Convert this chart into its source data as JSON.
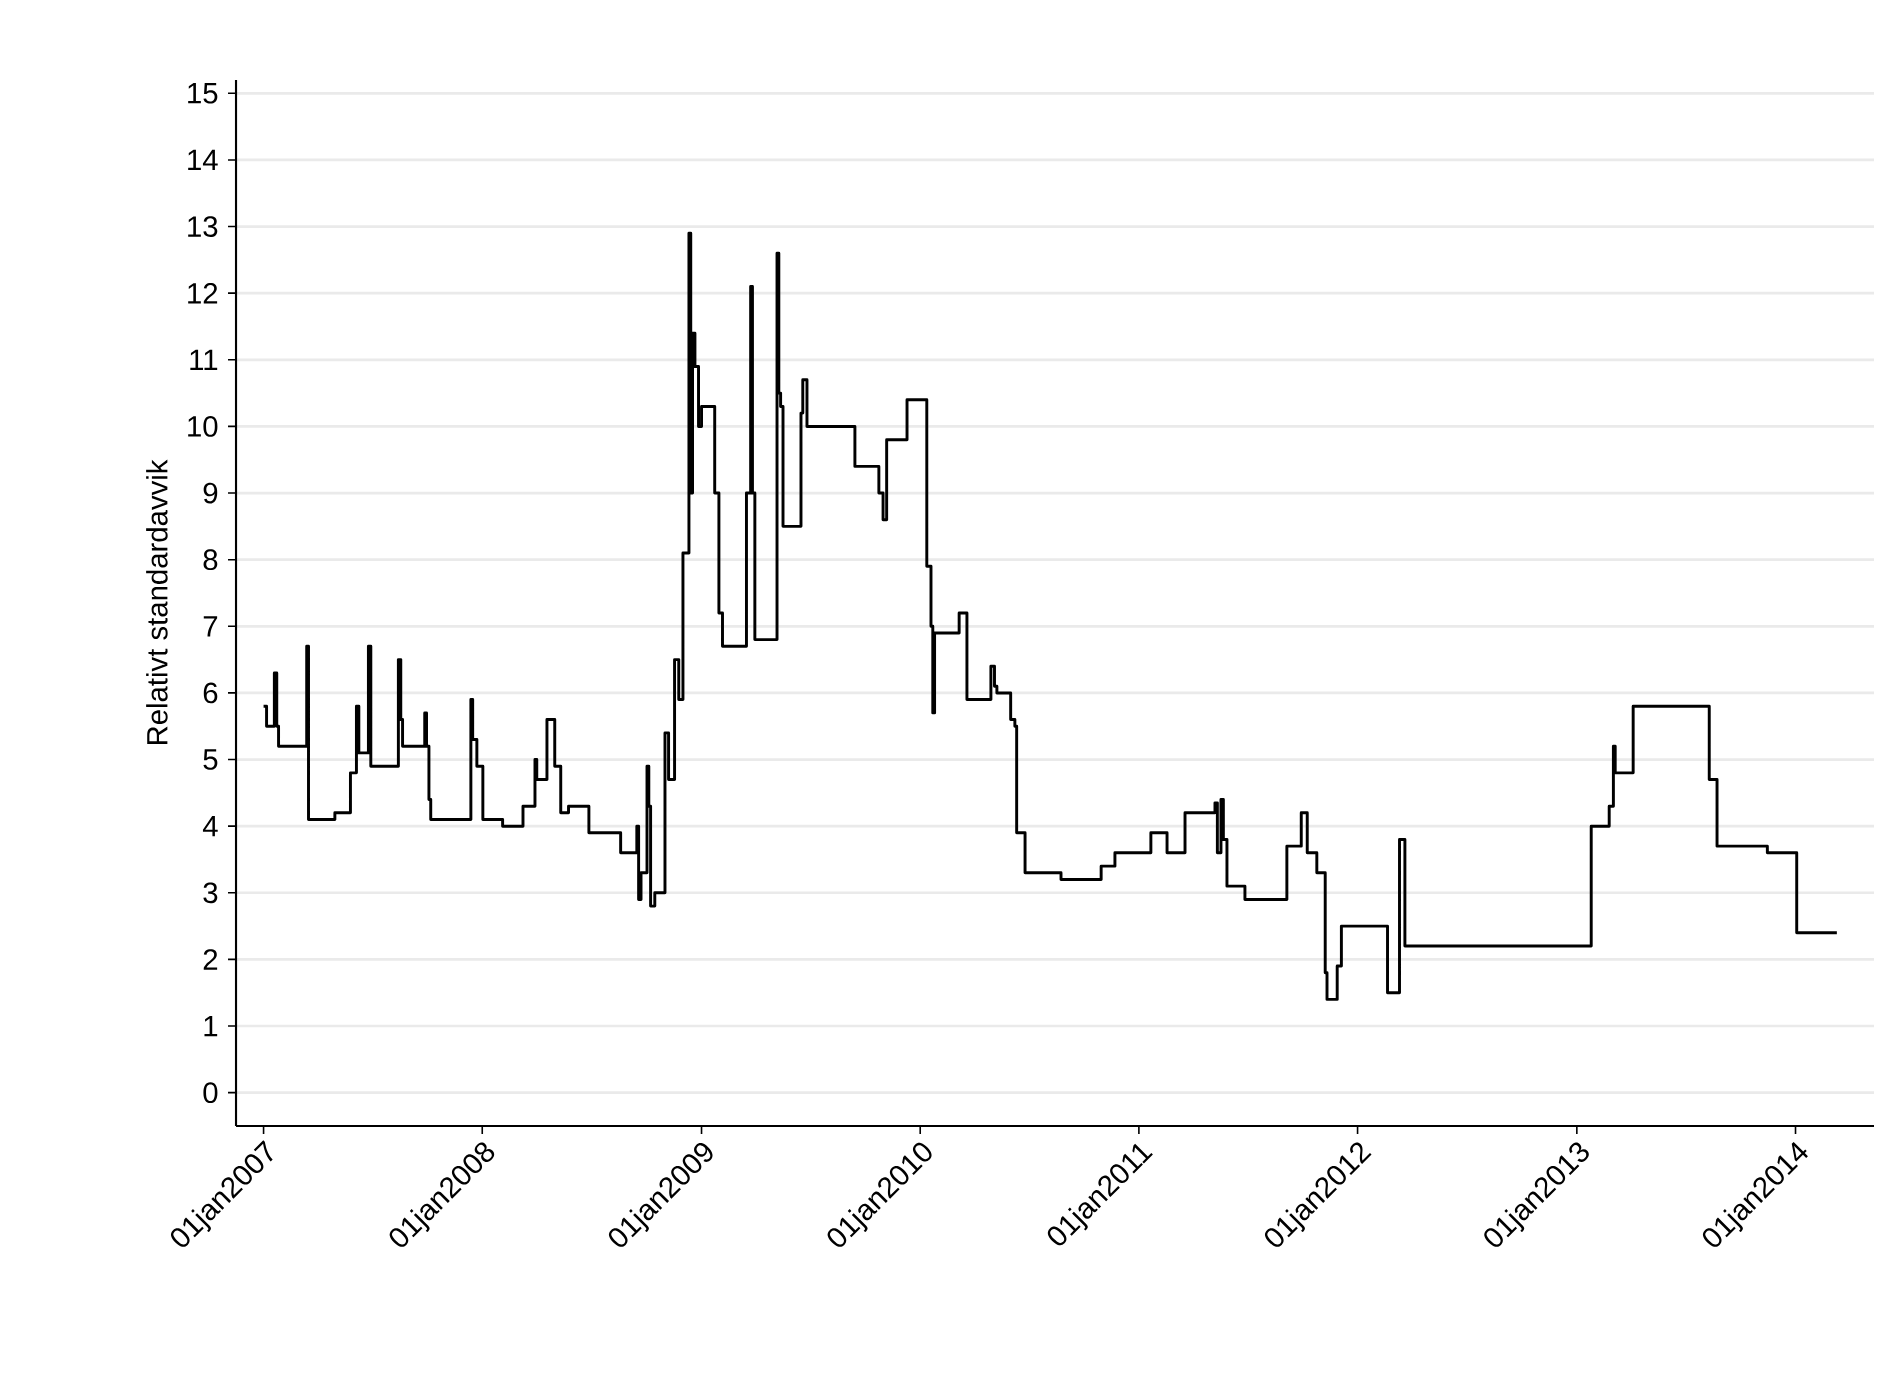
{
  "chart_data": {
    "type": "step",
    "ylabel": "Relativt standardavvik",
    "color": "#000000",
    "grid": "y",
    "xlim": [
      "2006-11-16",
      "2014-05-12"
    ],
    "xticks": [
      {
        "value": "2007-01-01",
        "label": "01jan2007"
      },
      {
        "value": "2008-01-01",
        "label": "01jan2008"
      },
      {
        "value": "2009-01-01",
        "label": "01jan2009"
      },
      {
        "value": "2010-01-01",
        "label": "01jan2010"
      },
      {
        "value": "2011-01-01",
        "label": "01jan2011"
      },
      {
        "value": "2012-01-01",
        "label": "01jan2012"
      },
      {
        "value": "2013-01-01",
        "label": "01jan2013"
      },
      {
        "value": "2014-01-01",
        "label": "01jan2014"
      }
    ],
    "ylim": [
      -0.5,
      15.2
    ],
    "yticks": [
      0,
      1,
      2,
      3,
      4,
      5,
      6,
      7,
      8,
      9,
      10,
      11,
      12,
      13,
      14,
      15
    ],
    "x": [
      "2007-01-01",
      "2007-01-06",
      "2007-01-19",
      "2007-01-23",
      "2007-01-26",
      "2007-03-14",
      "2007-03-17",
      "2007-04-30",
      "2007-05-26",
      "2007-06-05",
      "2007-06-09",
      "2007-06-25",
      "2007-06-29",
      "2007-08-14",
      "2007-08-18",
      "2007-08-21",
      "2007-09-27",
      "2007-09-30",
      "2007-10-04",
      "2007-10-07",
      "2007-12-13",
      "2007-12-16",
      "2007-12-23",
      "2008-01-02",
      "2008-02-04",
      "2008-03-09",
      "2008-03-29",
      "2008-04-01",
      "2008-04-18",
      "2008-05-01",
      "2008-05-11",
      "2008-05-24",
      "2008-06-27",
      "2008-08-19",
      "2008-09-15",
      "2008-09-18",
      "2008-09-22",
      "2008-10-02",
      "2008-10-05",
      "2008-10-08",
      "2008-10-15",
      "2008-11-01",
      "2008-11-07",
      "2008-11-17",
      "2008-11-24",
      "2008-12-01",
      "2008-12-11",
      "2008-12-14",
      "2008-12-17",
      "2008-12-21",
      "2008-12-27",
      "2009-01-01",
      "2009-01-23",
      "2009-01-30",
      "2009-02-05",
      "2009-03-17",
      "2009-03-24",
      "2009-03-27",
      "2009-03-31",
      "2009-05-07",
      "2009-05-10",
      "2009-05-13",
      "2009-05-17",
      "2009-06-16",
      "2009-06-19",
      "2009-06-26",
      "2009-09-14",
      "2009-10-24",
      "2009-10-31",
      "2009-11-06",
      "2009-12-10",
      "2010-01-12",
      "2010-01-19",
      "2010-01-22",
      "2010-01-25",
      "2010-03-07",
      "2010-03-20",
      "2010-04-29",
      "2010-05-05",
      "2010-05-09",
      "2010-06-01",
      "2010-06-08",
      "2010-06-11",
      "2010-06-25",
      "2010-08-24",
      "2010-10-30",
      "2010-11-22",
      "2011-01-21",
      "2011-02-17",
      "2011-03-19",
      "2011-05-08",
      "2011-05-12",
      "2011-05-18",
      "2011-05-22",
      "2011-05-28",
      "2011-06-27",
      "2011-09-05",
      "2011-09-29",
      "2011-10-09",
      "2011-10-25",
      "2011-11-08",
      "2011-11-11",
      "2011-11-28",
      "2011-12-05",
      "2012-02-20",
      "2012-03-11",
      "2012-03-20",
      "2013-01-25",
      "2013-02-24",
      "2013-03-03",
      "2013-03-06",
      "2013-04-05",
      "2013-08-10",
      "2013-08-23",
      "2013-11-15",
      "2014-01-03",
      "2014-03-11"
    ],
    "values": [
      5.8,
      5.5,
      6.3,
      5.5,
      5.2,
      6.7,
      4.1,
      4.2,
      4.8,
      5.8,
      5.1,
      6.7,
      4.9,
      6.5,
      5.6,
      5.2,
      5.7,
      5.2,
      4.4,
      4.1,
      5.9,
      5.3,
      4.9,
      4.1,
      4.0,
      4.3,
      5.0,
      4.7,
      5.6,
      4.9,
      4.2,
      4.3,
      3.9,
      3.6,
      4.0,
      2.9,
      3.3,
      4.9,
      4.3,
      2.8,
      3.0,
      5.4,
      4.7,
      6.5,
      5.9,
      8.1,
      12.9,
      9.0,
      11.4,
      10.9,
      10.0,
      10.3,
      9.0,
      7.2,
      6.7,
      9.0,
      12.1,
      9.0,
      6.8,
      12.6,
      10.5,
      10.3,
      8.5,
      10.2,
      10.7,
      10.0,
      9.4,
      9.0,
      8.6,
      9.8,
      10.4,
      7.9,
      7.0,
      5.7,
      6.9,
      7.2,
      5.9,
      6.4,
      6.1,
      6.0,
      5.6,
      5.5,
      3.9,
      3.3,
      3.2,
      3.4,
      3.6,
      3.9,
      3.6,
      4.2,
      4.35,
      3.6,
      4.4,
      3.8,
      3.1,
      2.9,
      3.7,
      4.2,
      3.6,
      3.3,
      1.8,
      1.4,
      1.9,
      2.5,
      1.5,
      3.8,
      2.2,
      4.0,
      4.3,
      5.2,
      4.8,
      5.8,
      4.7,
      3.7,
      3.6,
      2.4,
      2.4
    ]
  }
}
